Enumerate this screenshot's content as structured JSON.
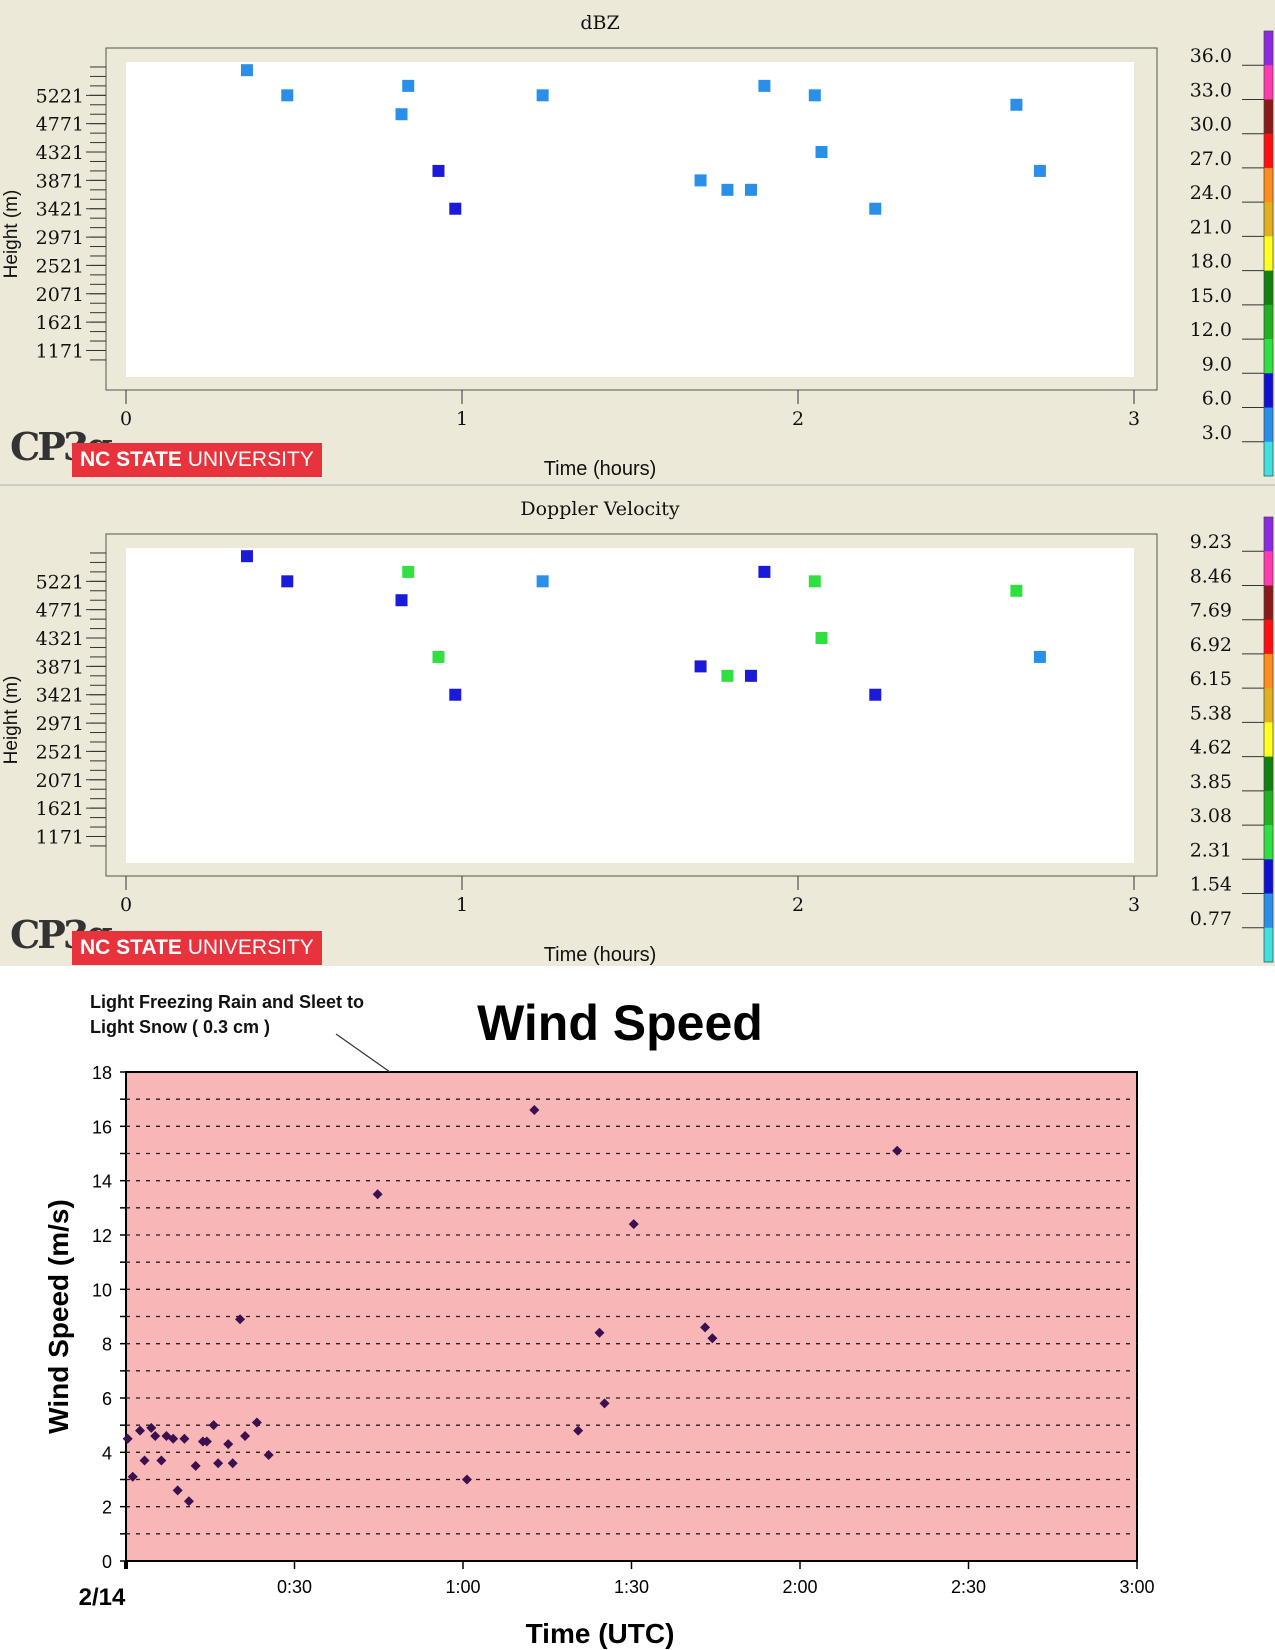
{
  "branding": {
    "cp3_logo": "CP3g",
    "ncsu_bold": "NC STATE",
    "ncsu_light": " UNIVERSITY"
  },
  "chart_data": [
    {
      "type": "scatter",
      "title": "dBZ",
      "xlabel": "Time (hours)",
      "ylabel": "Height (m)",
      "xlim": [
        0,
        3
      ],
      "ylim": [
        750,
        5750
      ],
      "xticks": [
        0,
        1,
        2,
        3
      ],
      "yticks": [
        1171,
        1621,
        2071,
        2521,
        2971,
        3421,
        3871,
        4321,
        4771,
        5221
      ],
      "points": [
        {
          "x": 0.36,
          "y": 5620,
          "c": "#2a8fe8"
        },
        {
          "x": 0.48,
          "y": 5221,
          "c": "#2a8fe8"
        },
        {
          "x": 0.82,
          "y": 4921,
          "c": "#2a8fe8"
        },
        {
          "x": 0.84,
          "y": 5371,
          "c": "#2a8fe8"
        },
        {
          "x": 0.93,
          "y": 4021,
          "c": "#1a1ad8"
        },
        {
          "x": 0.98,
          "y": 3421,
          "c": "#1a1ad8"
        },
        {
          "x": 1.24,
          "y": 5221,
          "c": "#2a8fe8"
        },
        {
          "x": 1.71,
          "y": 3871,
          "c": "#2a8fe8"
        },
        {
          "x": 1.79,
          "y": 3721,
          "c": "#2a8fe8"
        },
        {
          "x": 1.86,
          "y": 3721,
          "c": "#2a8fe8"
        },
        {
          "x": 1.9,
          "y": 5371,
          "c": "#2a8fe8"
        },
        {
          "x": 2.05,
          "y": 5221,
          "c": "#2a8fe8"
        },
        {
          "x": 2.07,
          "y": 4321,
          "c": "#2a8fe8"
        },
        {
          "x": 2.23,
          "y": 3421,
          "c": "#2a8fe8"
        },
        {
          "x": 2.65,
          "y": 5071,
          "c": "#2a8fe8"
        },
        {
          "x": 2.72,
          "y": 4021,
          "c": "#2a8fe8"
        }
      ],
      "colorbar": {
        "labels": [
          "36.0",
          "33.0",
          "30.0",
          "27.0",
          "24.0",
          "21.0",
          "18.0",
          "15.0",
          "12.0",
          "9.0",
          "6.0",
          "3.0"
        ],
        "colors": [
          "#8a2be2",
          "#ff3ab0",
          "#8b1a1a",
          "#ff1010",
          "#ff8c1a",
          "#e0b020",
          "#ffff20",
          "#108010",
          "#20b020",
          "#30e040",
          "#1010d0",
          "#2a8fe8",
          "#40e0e0"
        ]
      }
    },
    {
      "type": "scatter",
      "title": "Doppler Velocity",
      "xlabel": "Time (hours)",
      "ylabel": "Height (m)",
      "xlim": [
        0,
        3
      ],
      "ylim": [
        750,
        5750
      ],
      "xticks": [
        0,
        1,
        2,
        3
      ],
      "yticks": [
        1171,
        1621,
        2071,
        2521,
        2971,
        3421,
        3871,
        4321,
        4771,
        5221
      ],
      "points": [
        {
          "x": 0.36,
          "y": 5620,
          "c": "#1a1ad8"
        },
        {
          "x": 0.48,
          "y": 5221,
          "c": "#1a1ad8"
        },
        {
          "x": 0.82,
          "y": 4921,
          "c": "#1a1ad8"
        },
        {
          "x": 0.84,
          "y": 5371,
          "c": "#30e040"
        },
        {
          "x": 0.93,
          "y": 4021,
          "c": "#30e040"
        },
        {
          "x": 0.98,
          "y": 3421,
          "c": "#1a1ad8"
        },
        {
          "x": 1.24,
          "y": 5221,
          "c": "#2a8fe8"
        },
        {
          "x": 1.71,
          "y": 3871,
          "c": "#1a1ad8"
        },
        {
          "x": 1.79,
          "y": 3721,
          "c": "#30e040"
        },
        {
          "x": 1.86,
          "y": 3721,
          "c": "#1a1ad8"
        },
        {
          "x": 1.9,
          "y": 5371,
          "c": "#1a1ad8"
        },
        {
          "x": 2.05,
          "y": 5221,
          "c": "#30e040"
        },
        {
          "x": 2.07,
          "y": 4321,
          "c": "#30e040"
        },
        {
          "x": 2.23,
          "y": 3421,
          "c": "#1a1ad8"
        },
        {
          "x": 2.65,
          "y": 5071,
          "c": "#30e040"
        },
        {
          "x": 2.72,
          "y": 4021,
          "c": "#2a8fe8"
        }
      ],
      "colorbar": {
        "labels": [
          "9.23",
          "8.46",
          "7.69",
          "6.92",
          "6.15",
          "5.38",
          "4.62",
          "3.85",
          "3.08",
          "2.31",
          "1.54",
          "0.77"
        ],
        "colors": [
          "#8a2be2",
          "#ff3ab0",
          "#8b1a1a",
          "#ff1010",
          "#ff8c1a",
          "#e0b020",
          "#ffff20",
          "#108010",
          "#20b020",
          "#30e040",
          "#1010d0",
          "#2a8fe8",
          "#40e0e0"
        ]
      }
    },
    {
      "type": "scatter",
      "title": "Wind Speed",
      "xlabel": "Time (UTC)",
      "ylabel": "Wind Speed (m/s)",
      "xlim": [
        0,
        180
      ],
      "ylim": [
        0,
        18
      ],
      "yticks": [
        0,
        2,
        4,
        6,
        8,
        10,
        12,
        14,
        16,
        18
      ],
      "xticks": [
        0,
        30,
        60,
        90,
        120,
        150,
        180
      ],
      "xtick_labels": [
        "2/14",
        "0:30",
        "1:00",
        "1:30",
        "2:00",
        "2:30",
        "3:00"
      ],
      "annotation": {
        "line1": "Light Freezing Rain and Sleet to",
        "line2": "Light Snow  ( 0.3 cm )",
        "x": 47,
        "y": 18
      },
      "marker_color": "#3a1050",
      "points": [
        {
          "x": 0.3,
          "y": 4.5
        },
        {
          "x": 1.2,
          "y": 3.1
        },
        {
          "x": 2.5,
          "y": 4.8
        },
        {
          "x": 3.3,
          "y": 3.7
        },
        {
          "x": 4.5,
          "y": 4.9
        },
        {
          "x": 5.2,
          "y": 4.6
        },
        {
          "x": 6.3,
          "y": 3.7
        },
        {
          "x": 7.2,
          "y": 4.6
        },
        {
          "x": 8.4,
          "y": 4.5
        },
        {
          "x": 9.2,
          "y": 2.6
        },
        {
          "x": 10.4,
          "y": 4.5
        },
        {
          "x": 11.2,
          "y": 2.2
        },
        {
          "x": 12.4,
          "y": 3.5
        },
        {
          "x": 13.7,
          "y": 4.4
        },
        {
          "x": 14.4,
          "y": 4.4
        },
        {
          "x": 15.6,
          "y": 5.0
        },
        {
          "x": 16.4,
          "y": 3.6
        },
        {
          "x": 18.2,
          "y": 4.3
        },
        {
          "x": 19.0,
          "y": 3.6
        },
        {
          "x": 20.3,
          "y": 8.9
        },
        {
          "x": 21.2,
          "y": 4.6
        },
        {
          "x": 23.3,
          "y": 5.1
        },
        {
          "x": 25.4,
          "y": 3.9
        },
        {
          "x": 44.8,
          "y": 13.5
        },
        {
          "x": 60.7,
          "y": 3.0
        },
        {
          "x": 72.7,
          "y": 16.6
        },
        {
          "x": 80.5,
          "y": 4.8
        },
        {
          "x": 84.3,
          "y": 8.4
        },
        {
          "x": 85.2,
          "y": 5.8
        },
        {
          "x": 90.4,
          "y": 12.4
        },
        {
          "x": 103.1,
          "y": 8.6
        },
        {
          "x": 104.4,
          "y": 8.2
        },
        {
          "x": 137.3,
          "y": 15.1
        }
      ]
    }
  ]
}
